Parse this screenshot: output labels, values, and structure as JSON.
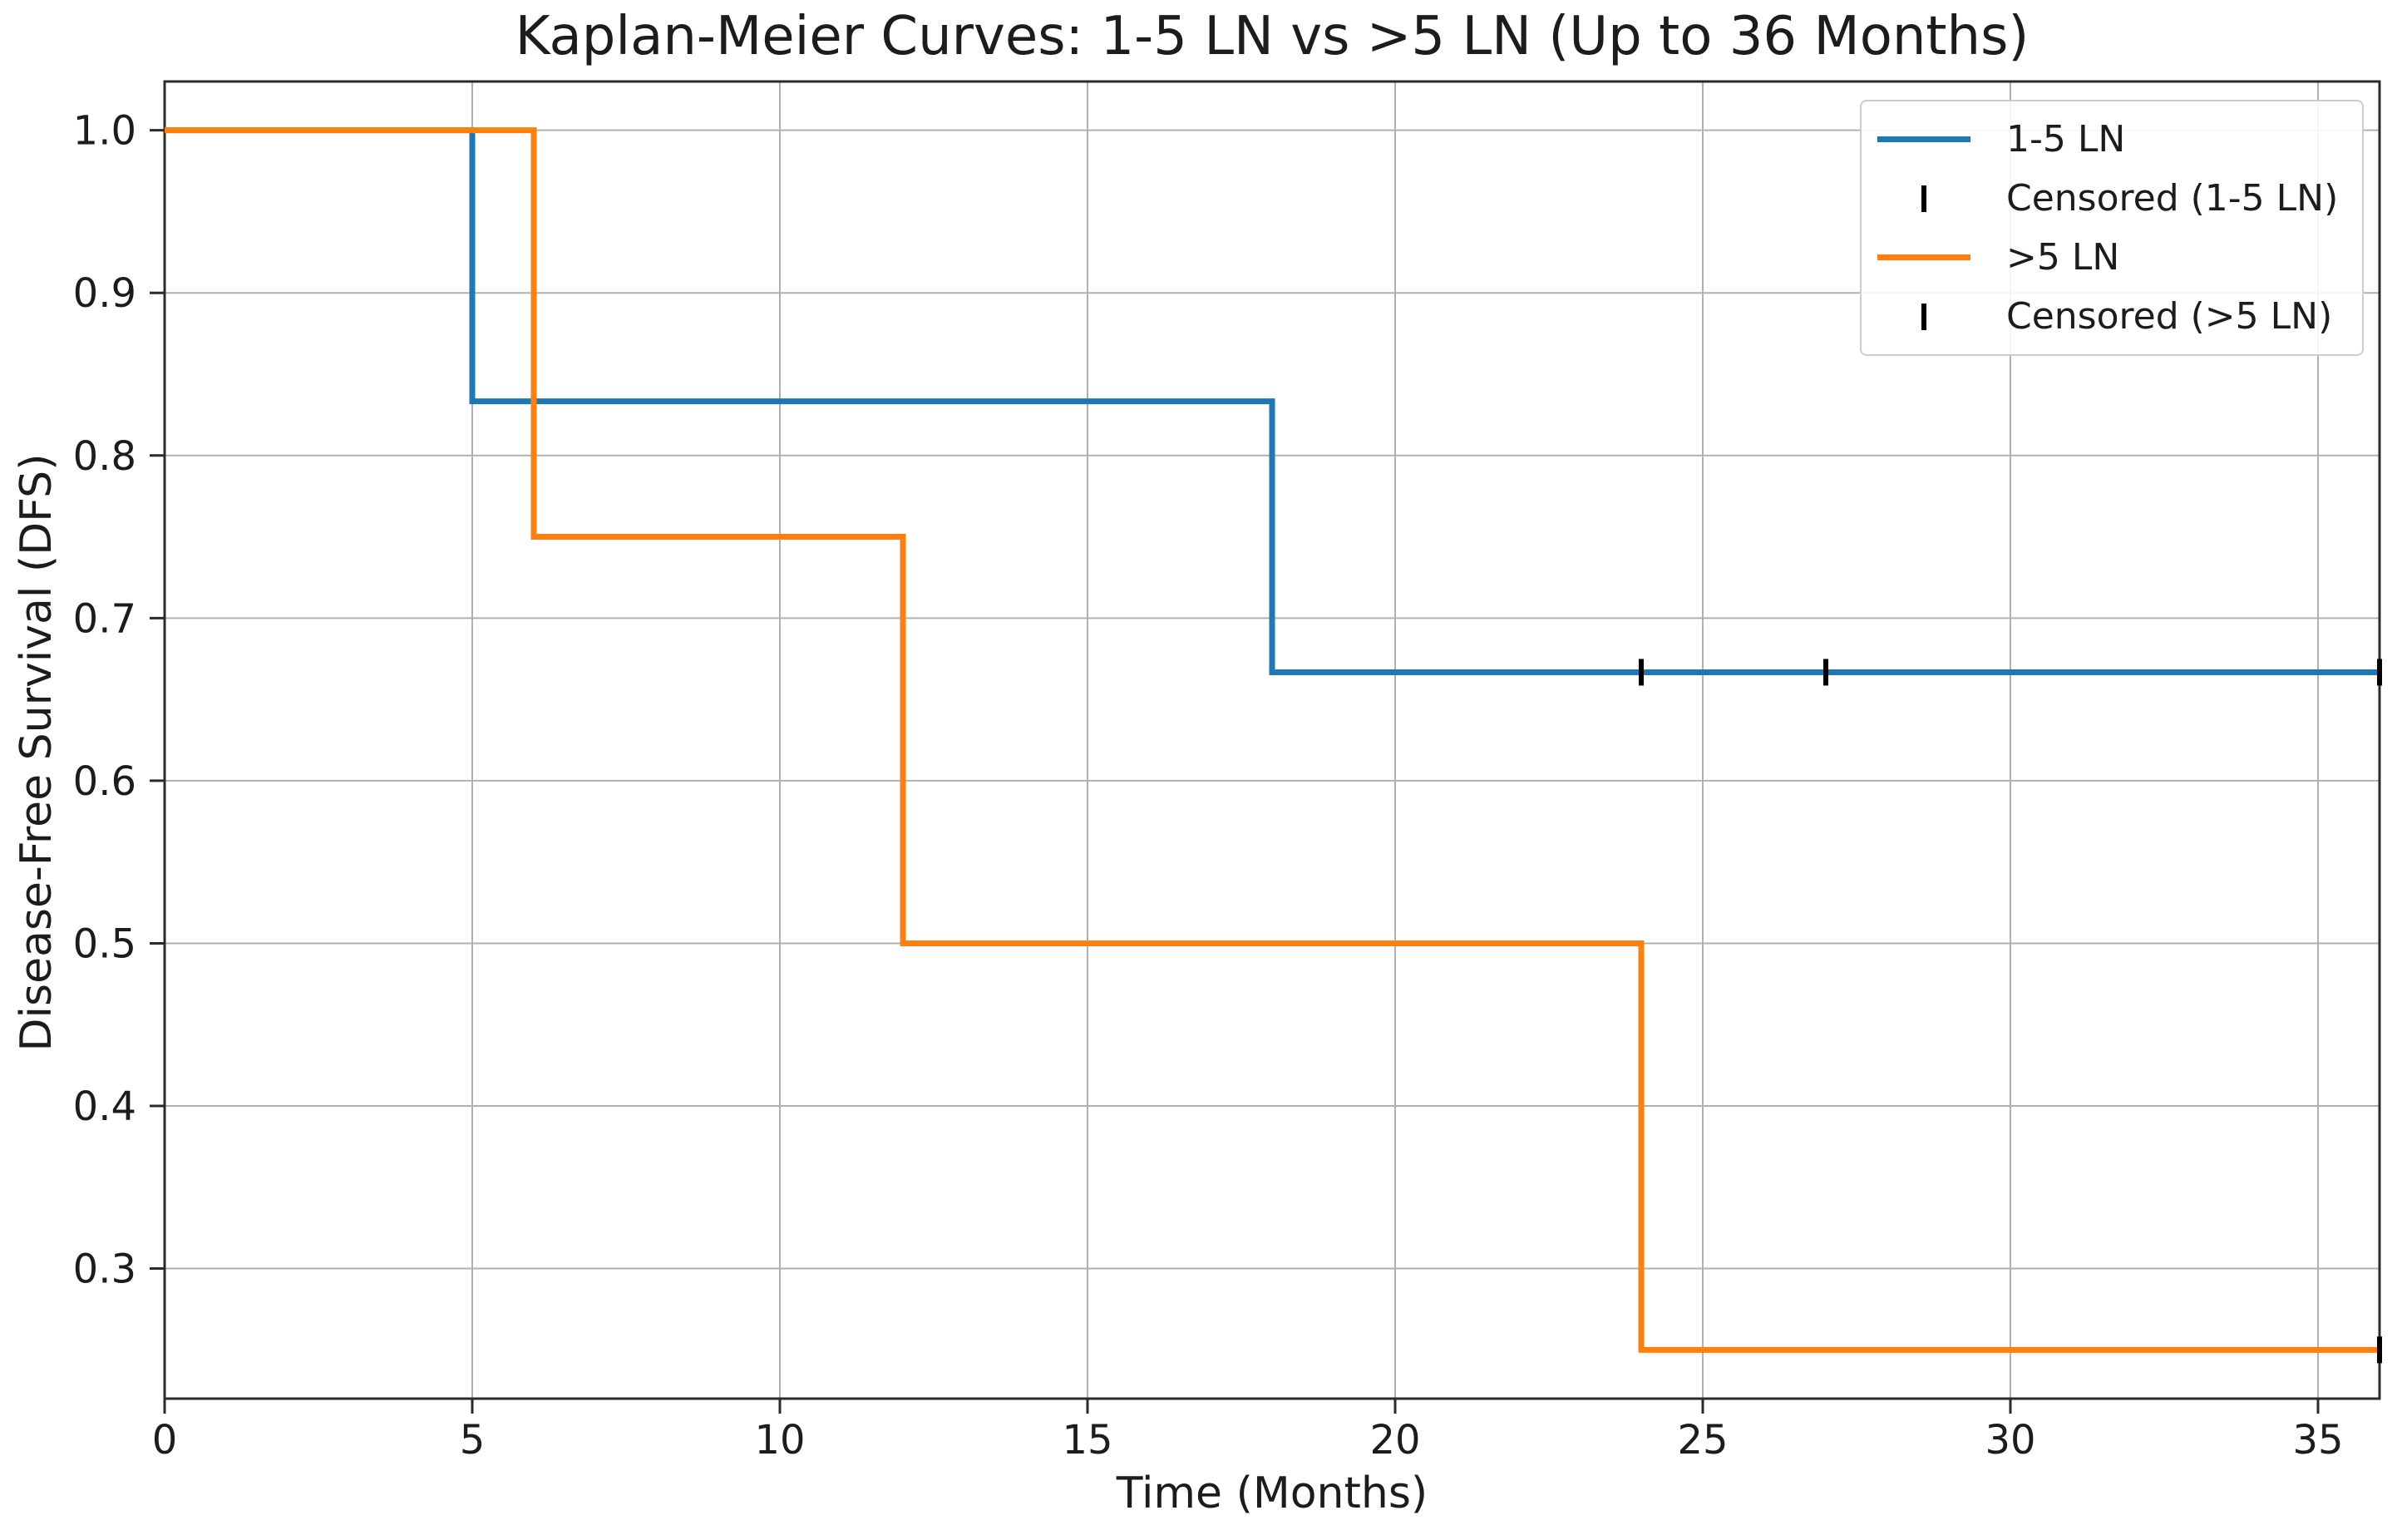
{
  "chart_data": {
    "type": "line",
    "subtype": "kaplan-meier-step",
    "step": "post",
    "title": "Kaplan-Meier Curves: 1-5 LN vs >5 LN (Up to 36 Months)",
    "xlabel": "Time (Months)",
    "ylabel": "Disease-Free Survival (DFS)",
    "xlim": [
      0,
      36
    ],
    "ylim": [
      0.22,
      1.03
    ],
    "grid": true,
    "xticks": {
      "values": [
        0,
        5,
        10,
        15,
        20,
        25,
        30,
        35
      ],
      "labels": [
        "0",
        "5",
        "10",
        "15",
        "20",
        "25",
        "30",
        "35"
      ]
    },
    "yticks": {
      "values": [
        1.0,
        0.9,
        0.8,
        0.7,
        0.6,
        0.5,
        0.4,
        0.3
      ],
      "labels": [
        "1.0",
        "0.9",
        "0.8",
        "0.7",
        "0.6",
        "0.5",
        "0.4",
        "0.3"
      ]
    },
    "series": [
      {
        "name": "1-5 LN",
        "color": "#1f77b4",
        "points": [
          [
            0,
            1.0
          ],
          [
            5,
            1.0
          ],
          [
            5,
            0.8333
          ],
          [
            18,
            0.8333
          ],
          [
            18,
            0.6667
          ],
          [
            36,
            0.6667
          ]
        ],
        "censored": [
          [
            24,
            0.6667
          ],
          [
            27,
            0.6667
          ],
          [
            36,
            0.6667
          ]
        ],
        "censored_label": "Censored (1-5 LN)"
      },
      {
        "name": ">5 LN",
        "color": "#ff7f0e",
        "points": [
          [
            0,
            1.0
          ],
          [
            6,
            1.0
          ],
          [
            6,
            0.75
          ],
          [
            12,
            0.75
          ],
          [
            12,
            0.5
          ],
          [
            24,
            0.5
          ],
          [
            24,
            0.25
          ],
          [
            36,
            0.25
          ]
        ],
        "censored": [
          [
            36,
            0.25
          ]
        ],
        "censored_label": "Censored (>5 LN)"
      }
    ],
    "legend": {
      "position": "upper right",
      "entries": [
        {
          "handle": "line",
          "color": "#1f77b4",
          "label": "1-5 LN"
        },
        {
          "handle": "tick",
          "color": "#000000",
          "label": "Censored (1-5 LN)"
        },
        {
          "handle": "line",
          "color": "#ff7f0e",
          "label": ">5 LN"
        },
        {
          "handle": "tick",
          "color": "#000000",
          "label": "Censored (>5 LN)"
        }
      ]
    }
  },
  "colors": {
    "series_blue": "#1f77b4",
    "series_orange": "#ff7f0e",
    "censor_marker": "#000000",
    "grid": "#b0b0b0",
    "spine": "#2b2b2b",
    "text": "#1c1c1c",
    "background": "#ffffff"
  }
}
